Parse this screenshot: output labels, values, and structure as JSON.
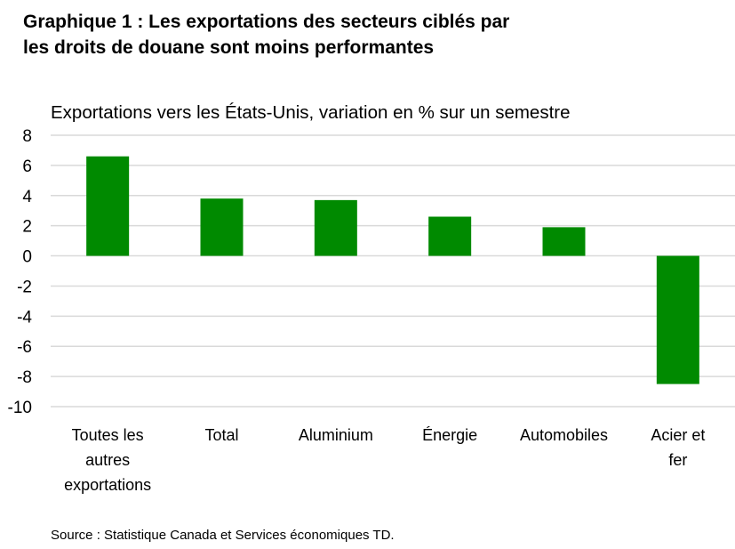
{
  "header": {
    "title_line1": "Graphique 1 : Les exportations des secteurs ciblés par",
    "title_line2": "les droits de douane sont moins performantes"
  },
  "chart_data": {
    "type": "bar",
    "subtitle": "Exportations vers les États-Unis, variation en % sur un semestre",
    "categories": [
      [
        "Toutes les",
        "autres",
        "exportations"
      ],
      [
        "Total"
      ],
      [
        "Aluminium"
      ],
      [
        "Énergie"
      ],
      [
        "Automobiles"
      ],
      [
        "Acier et",
        "fer"
      ]
    ],
    "values": [
      6.6,
      3.8,
      3.7,
      2.6,
      1.9,
      -8.5
    ],
    "ylim": [
      -10,
      8
    ],
    "yticks": [
      8,
      6,
      4,
      2,
      0,
      -2,
      -4,
      -6,
      -8,
      -10
    ],
    "grid": true,
    "bar_color": "#008a00",
    "grid_color": "#d9d9d9"
  },
  "footer": {
    "source": "Source : Statistique Canada et Services économiques TD."
  }
}
